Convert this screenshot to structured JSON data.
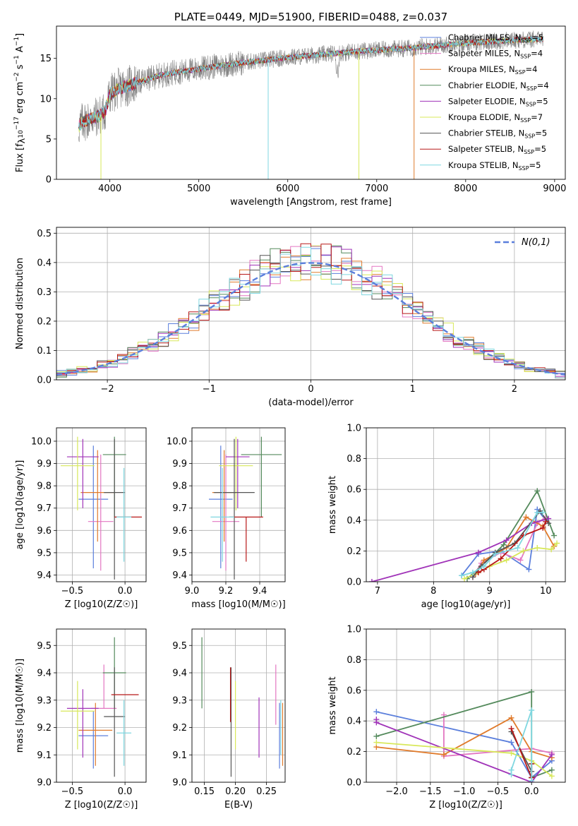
{
  "colors": {
    "chabrier_miles": "#5b7fdc",
    "salpeter_miles": "#e377c2",
    "kroupa_miles": "#e07b2c",
    "chabrier_elodie": "#548a5c",
    "salpeter_elodie": "#a033b8",
    "kroupa_elodie": "#d8e85a",
    "chabrier_stelib": "#555555",
    "salpeter_stelib": "#b81818",
    "kroupa_stelib": "#7fd7e0",
    "grid": "#b0b0b0",
    "spectrum_gray": "#808080"
  },
  "chart_data": [
    {
      "id": "spectrum",
      "type": "line",
      "title": "PLATE=0449, MJD=51900, FIBERID=0488, z=0.037",
      "xlabel": "wavelength [Angstrom, rest frame]",
      "ylabel": "Flux [f_λ10^-17 erg cm^-2 s^-1 A^-1]",
      "xlim": [
        3400,
        9120
      ],
      "ylim": [
        0,
        19
      ],
      "xticks": [
        4000,
        5000,
        6000,
        7000,
        8000,
        9000
      ],
      "yticks": [
        0,
        5,
        10,
        15
      ],
      "grid": false,
      "legend_position": "top-right",
      "series": [
        {
          "name": "Chabrier MILES, N_SSP=5",
          "color_key": "chabrier_miles"
        },
        {
          "name": "Salpeter MILES, N_SSP=4",
          "color_key": "salpeter_miles"
        },
        {
          "name": "Kroupa MILES, N_SSP=4",
          "color_key": "kroupa_miles"
        },
        {
          "name": "Chabrier ELODIE, N_SSP=4",
          "color_key": "chabrier_elodie"
        },
        {
          "name": "Salpeter ELODIE, N_SSP=5",
          "color_key": "salpeter_elodie"
        },
        {
          "name": "Kroupa ELODIE, N_SSP=7",
          "color_key": "kroupa_elodie"
        },
        {
          "name": "Chabrier STELIB, N_SSP=5",
          "color_key": "chabrier_stelib"
        },
        {
          "name": "Salpeter STELIB, N_SSP=5",
          "color_key": "salpeter_stelib"
        },
        {
          "name": "Kroupa STELIB, N_SSP=5",
          "color_key": "kroupa_stelib"
        }
      ],
      "continuum": {
        "x": [
          3650,
          3700,
          3800,
          3900,
          3950,
          4000,
          4100,
          4200,
          4300,
          4400,
          4500,
          4700,
          5000,
          5300,
          5600,
          5900,
          6200,
          6500,
          6800,
          7100,
          7400,
          7700,
          8000,
          8300,
          8600,
          8870
        ],
        "y": [
          6.5,
          7.2,
          7.5,
          8.0,
          8.5,
          10.5,
          11.3,
          11.6,
          12.0,
          12.3,
          12.7,
          13.2,
          13.7,
          14.2,
          14.6,
          15.0,
          15.3,
          15.6,
          15.9,
          16.1,
          16.3,
          16.6,
          16.9,
          17.1,
          17.3,
          17.4
        ]
      },
      "drops": [
        {
          "x": 5780,
          "y_min": 0,
          "color_key": "kroupa_stelib"
        },
        {
          "x": 6800,
          "y_min": 0,
          "color_key": "kroupa_elodie"
        },
        {
          "x": 7420,
          "y_min": 0,
          "color_key": "kroupa_miles"
        },
        {
          "x": 3900,
          "y_min": 0,
          "color_key": "kroupa_elodie"
        }
      ]
    },
    {
      "id": "residuals",
      "type": "line",
      "xlabel": "(data-model)/error",
      "ylabel": "Normed distribution",
      "xlim": [
        -2.5,
        2.5
      ],
      "ylim": [
        0,
        0.52
      ],
      "xticks": [
        -2,
        -1,
        0,
        1,
        2
      ],
      "yticks": [
        0.0,
        0.1,
        0.2,
        0.3,
        0.4,
        0.5
      ],
      "grid": true,
      "legend_position": "top-right",
      "gaussian_label": "N(0,1)",
      "bin_width": 0.1
    },
    {
      "id": "age_vs_Z",
      "type": "scatter",
      "xlabel": "Z [log10(Z/Z☉)]",
      "ylabel": "age  [log10(age/yr)]",
      "xlim": [
        -0.65,
        0.2
      ],
      "ylim": [
        9.37,
        10.06
      ],
      "xticks": [
        -0.5,
        0.0
      ],
      "yticks": [
        9.4,
        9.5,
        9.6,
        9.7,
        9.8,
        9.9,
        10.0
      ],
      "grid": true,
      "points": [
        {
          "series": "chabrier_miles",
          "x": -0.3,
          "y": 9.74,
          "xerr": 0.14,
          "yerr": [
            0.31,
            0.24
          ]
        },
        {
          "series": "salpeter_miles",
          "x": -0.23,
          "y": 9.64,
          "xerr": 0.12,
          "yerr": [
            0.22,
            0.3
          ]
        },
        {
          "series": "kroupa_miles",
          "x": -0.26,
          "y": 9.77,
          "xerr": 0.16,
          "yerr": [
            0.22,
            0.19
          ]
        },
        {
          "series": "chabrier_elodie",
          "x": -0.1,
          "y": 9.94,
          "xerr": 0.11,
          "yerr": [
            0.28,
            0.08
          ]
        },
        {
          "series": "salpeter_elodie",
          "x": -0.4,
          "y": 9.93,
          "xerr": 0.15,
          "yerr": [
            0.23,
            0.08
          ]
        },
        {
          "series": "kroupa_elodie",
          "x": -0.45,
          "y": 9.89,
          "xerr": 0.16,
          "yerr": [
            0.2,
            0.13
          ]
        },
        {
          "series": "chabrier_stelib",
          "x": -0.1,
          "y": 9.77,
          "xerr": 0.1,
          "yerr": [
            0.39,
            0.24
          ]
        },
        {
          "series": "salpeter_stelib",
          "x": 0.03,
          "y": 9.66,
          "xerr": 0.13,
          "yerr": [
            0.0,
            0.0
          ]
        },
        {
          "series": "kroupa_stelib",
          "x": -0.01,
          "y": 9.66,
          "xerr": 0.07,
          "yerr": [
            0.2,
            0.22
          ]
        }
      ]
    },
    {
      "id": "age_vs_mass",
      "type": "scatter",
      "xlabel": "mass [log10(M/M☉)]",
      "ylabel": "",
      "xlim": [
        9.0,
        9.55
      ],
      "ylim": [
        9.37,
        10.06
      ],
      "xticks": [
        9.0,
        9.2,
        9.4
      ],
      "yticks": [
        9.4,
        9.5,
        9.6,
        9.7,
        9.8,
        9.9,
        10.0
      ],
      "grid": true,
      "points": [
        {
          "series": "chabrier_miles",
          "x": 9.17,
          "y": 9.74,
          "xerr": 0.07,
          "yerr": [
            0.31,
            0.24
          ]
        },
        {
          "series": "salpeter_miles",
          "x": 9.2,
          "y": 9.64,
          "xerr": 0.08,
          "yerr": [
            0.22,
            0.3
          ]
        },
        {
          "series": "kroupa_miles",
          "x": 9.19,
          "y": 9.77,
          "xerr": 0.07,
          "yerr": [
            0.22,
            0.19
          ]
        },
        {
          "series": "chabrier_elodie",
          "x": 9.41,
          "y": 9.94,
          "xerr": 0.12,
          "yerr": [
            0.28,
            0.08
          ]
        },
        {
          "series": "salpeter_elodie",
          "x": 9.27,
          "y": 9.93,
          "xerr": 0.07,
          "yerr": [
            0.23,
            0.08
          ]
        },
        {
          "series": "kroupa_elodie",
          "x": 9.26,
          "y": 9.89,
          "xerr": 0.1,
          "yerr": [
            0.2,
            0.13
          ]
        },
        {
          "series": "chabrier_stelib",
          "x": 9.25,
          "y": 9.77,
          "xerr": 0.12,
          "yerr": [
            0.39,
            0.24
          ]
        },
        {
          "series": "salpeter_stelib",
          "x": 9.32,
          "y": 9.66,
          "xerr": 0.1,
          "yerr": [
            0.2,
            0.0
          ]
        },
        {
          "series": "kroupa_stelib",
          "x": 9.18,
          "y": 9.66,
          "xerr": 0.07,
          "yerr": [
            0.2,
            0.22
          ]
        }
      ]
    },
    {
      "id": "massweight_vs_age",
      "type": "line",
      "xlabel": "age  [log10(age/yr)]",
      "ylabel": "mass weight",
      "xlim": [
        6.8,
        10.35
      ],
      "ylim": [
        0,
        1.0
      ],
      "xticks": [
        7,
        8,
        9,
        10
      ],
      "yticks": [
        0.0,
        0.2,
        0.4,
        0.6,
        0.8,
        1.0
      ],
      "grid": true,
      "series": [
        {
          "key": "chabrier_miles",
          "x": [
            8.5,
            8.8,
            9.2,
            9.7,
            9.85,
            10.0
          ],
          "y": [
            0.04,
            0.18,
            0.2,
            0.08,
            0.47,
            0.4
          ]
        },
        {
          "key": "salpeter_miles",
          "x": [
            8.7,
            8.85,
            9.2,
            9.55,
            9.85,
            10.0
          ],
          "y": [
            0.03,
            0.12,
            0.19,
            0.14,
            0.38,
            0.42
          ]
        },
        {
          "key": "kroupa_miles",
          "x": [
            8.75,
            8.9,
            9.3,
            9.65,
            9.95,
            10.15
          ],
          "y": [
            0.05,
            0.14,
            0.22,
            0.42,
            0.36,
            0.23
          ]
        },
        {
          "key": "chabrier_elodie",
          "x": [
            8.6,
            8.85,
            9.25,
            9.85,
            10.15
          ],
          "y": [
            0.02,
            0.1,
            0.24,
            0.59,
            0.3
          ]
        },
        {
          "key": "salpeter_elodie",
          "x": [
            6.9,
            8.8,
            9.3,
            9.75,
            10.05
          ],
          "y": [
            0.0,
            0.19,
            0.27,
            0.38,
            0.41
          ]
        },
        {
          "key": "kroupa_elodie",
          "x": [
            8.55,
            8.8,
            9.0,
            9.3,
            9.6,
            9.85,
            10.1,
            10.2
          ],
          "y": [
            0.02,
            0.06,
            0.1,
            0.14,
            0.2,
            0.22,
            0.21,
            0.25
          ]
        },
        {
          "key": "chabrier_stelib",
          "x": [
            8.7,
            8.85,
            9.1,
            9.45,
            9.9,
            10.05
          ],
          "y": [
            0.03,
            0.1,
            0.19,
            0.25,
            0.46,
            0.38
          ]
        },
        {
          "key": "salpeter_stelib",
          "x": [
            8.8,
            8.9,
            9.2,
            9.6,
            9.95,
            10.0
          ],
          "y": [
            0.06,
            0.08,
            0.15,
            0.3,
            0.35,
            0.39
          ]
        },
        {
          "key": "kroupa_stelib",
          "x": [
            8.5,
            8.7,
            8.9,
            9.1,
            9.5,
            9.85,
            9.95
          ],
          "y": [
            0.04,
            0.06,
            0.1,
            0.18,
            0.22,
            0.45,
            0.45
          ]
        }
      ]
    },
    {
      "id": "mass_vs_Z",
      "type": "scatter",
      "xlabel": "Z [log10(Z/Z☉)]",
      "ylabel": "mass [log10(M/M☉)]",
      "xlim": [
        -0.65,
        0.2
      ],
      "ylim": [
        9.0,
        9.56
      ],
      "xticks": [
        -0.5,
        0.0
      ],
      "yticks": [
        9.0,
        9.1,
        9.2,
        9.3,
        9.4,
        9.5
      ],
      "grid": true,
      "points": [
        {
          "series": "chabrier_miles",
          "x": -0.3,
          "y": 9.17,
          "xerr": 0.14,
          "yerr": [
            0.12,
            0.09
          ]
        },
        {
          "series": "salpeter_miles",
          "x": -0.2,
          "y": 9.27,
          "xerr": 0.12,
          "yerr": [
            0.0,
            0.16
          ]
        },
        {
          "series": "kroupa_miles",
          "x": -0.28,
          "y": 9.19,
          "xerr": 0.16,
          "yerr": [
            0.13,
            0.1
          ]
        },
        {
          "series": "chabrier_elodie",
          "x": -0.1,
          "y": 9.4,
          "xerr": 0.11,
          "yerr": [
            0.13,
            0.13
          ]
        },
        {
          "series": "salpeter_elodie",
          "x": -0.4,
          "y": 9.27,
          "xerr": 0.15,
          "yerr": [
            0.18,
            0.07
          ]
        },
        {
          "series": "kroupa_elodie",
          "x": -0.45,
          "y": 9.26,
          "xerr": 0.16,
          "yerr": [
            0.14,
            0.11
          ]
        },
        {
          "series": "chabrier_stelib",
          "x": -0.1,
          "y": 9.24,
          "xerr": 0.1,
          "yerr": [
            0.22,
            0.18
          ]
        },
        {
          "series": "salpeter_stelib",
          "x": 0.0,
          "y": 9.32,
          "xerr": 0.13,
          "yerr": [
            0.0,
            0.0
          ]
        },
        {
          "series": "kroupa_stelib",
          "x": -0.01,
          "y": 9.18,
          "xerr": 0.07,
          "yerr": [
            0.12,
            0.12
          ]
        }
      ]
    },
    {
      "id": "mass_vs_ebv",
      "type": "scatter",
      "xlabel": "E(B-V)",
      "ylabel": "",
      "xlim": [
        0.13,
        0.28
      ],
      "ylim": [
        9.0,
        9.56
      ],
      "xticks": [
        0.15,
        0.2,
        0.25
      ],
      "yticks": [
        9.0,
        9.1,
        9.2,
        9.3,
        9.4,
        9.5
      ],
      "grid": true,
      "points": [
        {
          "series": "chabrier_elodie",
          "x": 0.146,
          "y": 9.4,
          "xerr": 0,
          "yerr": [
            0.13,
            0.13
          ]
        },
        {
          "series": "chabrier_stelib",
          "x": 0.193,
          "y": 9.24,
          "xerr": 0,
          "yerr": [
            0.22,
            0.18
          ]
        },
        {
          "series": "salpeter_stelib",
          "x": 0.192,
          "y": 9.32,
          "xerr": 0,
          "yerr": [
            0.1,
            0.1
          ]
        },
        {
          "series": "kroupa_elodie",
          "x": 0.2,
          "y": 9.26,
          "xerr": 0,
          "yerr": [
            0.14,
            0.11
          ]
        },
        {
          "series": "salpeter_elodie",
          "x": 0.238,
          "y": 9.24,
          "xerr": 0,
          "yerr": [
            0.15,
            0.07
          ]
        },
        {
          "series": "salpeter_miles",
          "x": 0.265,
          "y": 9.33,
          "xerr": 0,
          "yerr": [
            0.12,
            0.1
          ]
        },
        {
          "series": "chabrier_miles",
          "x": 0.271,
          "y": 9.17,
          "xerr": 0,
          "yerr": [
            0.12,
            0.12
          ]
        },
        {
          "series": "kroupa_miles",
          "x": 0.276,
          "y": 9.19,
          "xerr": 0,
          "yerr": [
            0.13,
            0.1
          ]
        },
        {
          "series": "kroupa_stelib",
          "x": 0.273,
          "y": 9.2,
          "xerr": 0,
          "yerr": [
            0.1,
            0.1
          ]
        }
      ]
    },
    {
      "id": "massweight_vs_Z",
      "type": "line",
      "xlabel": "Z [log10(Z/Z☉)]",
      "ylabel": "mass weight",
      "xlim": [
        -2.45,
        0.5
      ],
      "ylim": [
        0,
        1.0
      ],
      "xticks": [
        -2.0,
        -1.5,
        -1.0,
        -0.5,
        0.0
      ],
      "yticks": [
        0.0,
        0.2,
        0.4,
        0.6,
        0.8,
        1.0
      ],
      "grid": true,
      "series": [
        {
          "key": "chabrier_miles",
          "x": [
            -2.3,
            -0.3,
            0.0,
            0.3
          ],
          "y": [
            0.46,
            0.26,
            0.03,
            0.14
          ]
        },
        {
          "key": "salpeter_miles",
          "x": [
            -1.3,
            -1.3,
            0.0,
            0.3
          ],
          "y": [
            0.44,
            0.17,
            0.22,
            0.19
          ]
        },
        {
          "key": "kroupa_miles",
          "x": [
            -2.3,
            -1.3,
            -0.3,
            0.0,
            0.3
          ],
          "y": [
            0.23,
            0.18,
            0.42,
            0.2,
            0.16
          ]
        },
        {
          "key": "chabrier_elodie",
          "x": [
            -2.3,
            0.0,
            0.0,
            0.3
          ],
          "y": [
            0.3,
            0.59,
            0.03,
            0.08
          ]
        },
        {
          "key": "salpeter_elodie",
          "x": [
            -2.3,
            -2.3,
            0.0,
            0.3
          ],
          "y": [
            0.41,
            0.39,
            0.0,
            0.18
          ]
        },
        {
          "key": "kroupa_elodie",
          "x": [
            -2.3,
            -0.3,
            0.0,
            0.3
          ],
          "y": [
            0.26,
            0.19,
            0.14,
            0.04
          ]
        },
        {
          "key": "chabrier_stelib",
          "x": [
            -0.3,
            0.0,
            0.0
          ],
          "y": [
            0.33,
            0.07,
            0.12
          ]
        },
        {
          "key": "salpeter_stelib",
          "x": [
            -0.3,
            0.0,
            0.0
          ],
          "y": [
            0.35,
            0.03,
            0.12
          ]
        },
        {
          "key": "kroupa_stelib",
          "x": [
            -0.3,
            -0.3,
            0.0,
            0.0
          ],
          "y": [
            0.05,
            0.08,
            0.47,
            0.01
          ]
        }
      ]
    }
  ]
}
